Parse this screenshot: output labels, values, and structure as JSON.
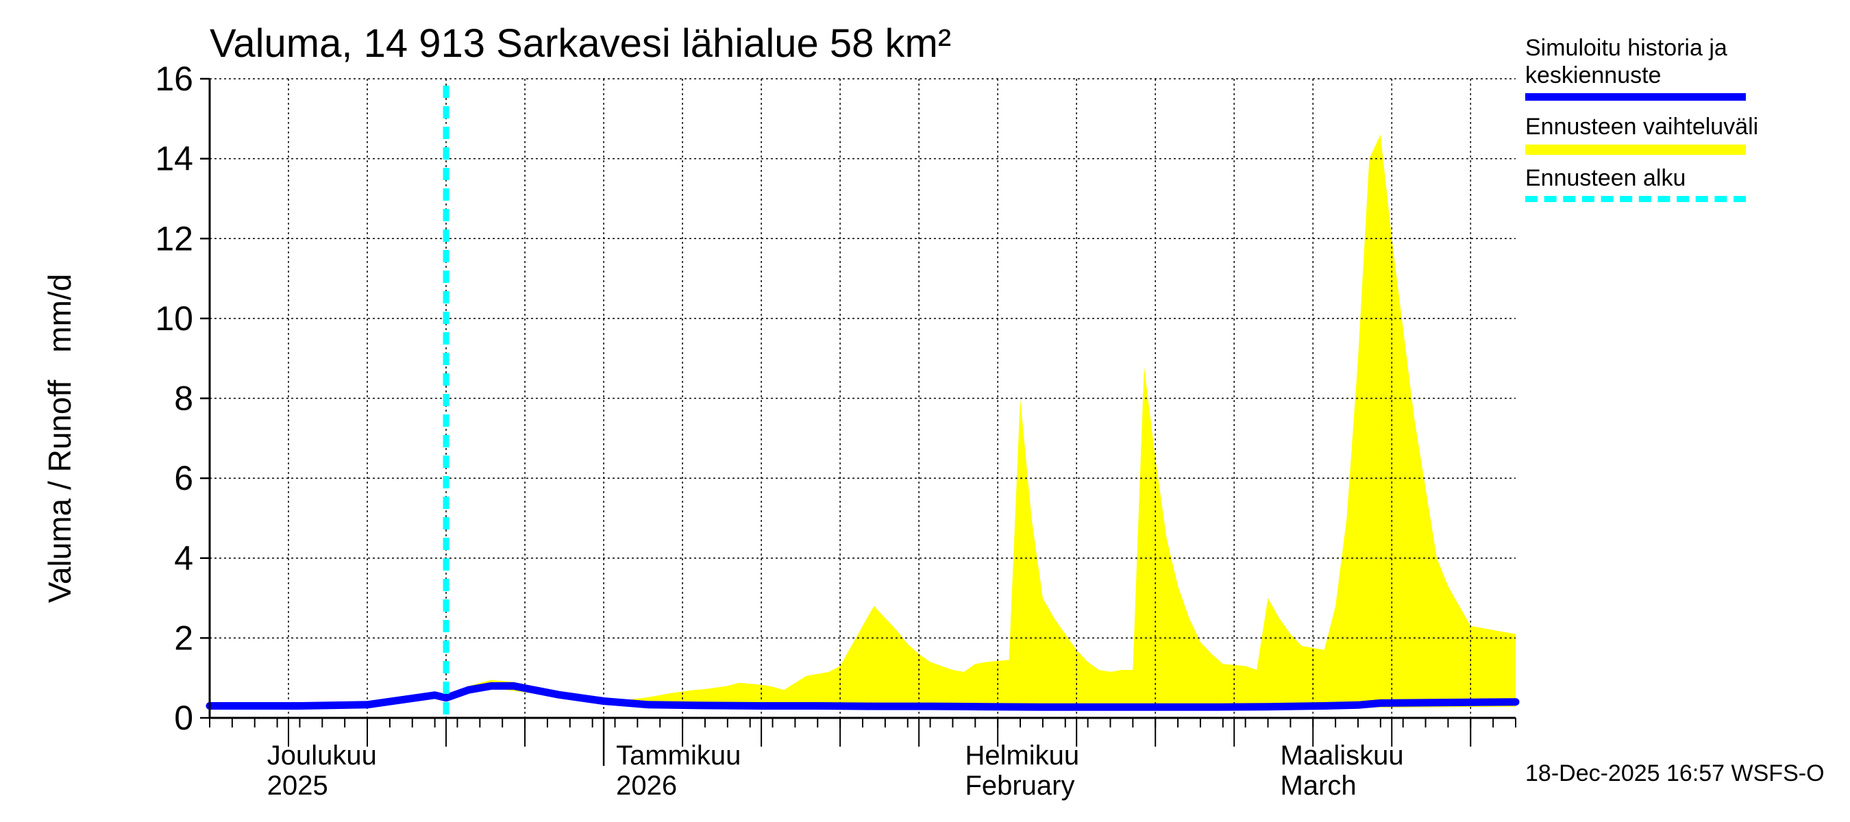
{
  "title": "Valuma, 14 913 Sarkavesi lähialue 58 km²",
  "y_axis_label": "Valuma / Runoff",
  "y_axis_unit": "mm/d",
  "legend": [
    {
      "label": "Simuloitu historia ja keskiennuste",
      "color": "#0000ff",
      "style": "solid"
    },
    {
      "label": "Ennusteen vaihteluväli",
      "color": "#ffff00",
      "style": "band"
    },
    {
      "label": "Ennusteen alku",
      "color": "#00ffff",
      "style": "dashed"
    }
  ],
  "footer": "18-Dec-2025 16:57 WSFS-O",
  "chart_data": {
    "type": "line",
    "title": "Valuma, 14 913 Sarkavesi lähialue 58 km²",
    "ylabel": "Valuma / Runoff mm/d",
    "ylim": [
      0,
      16
    ],
    "yticks": [
      0,
      2,
      4,
      6,
      8,
      10,
      12,
      14,
      16
    ],
    "x_range_days": [
      -4,
      112
    ],
    "x_unit": "days since 1-Dec-2025",
    "grid": true,
    "month_labels": [
      {
        "day": 0,
        "lines": [
          "Joulukuu",
          "2025"
        ]
      },
      {
        "day": 31,
        "lines": [
          "Tammikuu",
          "2026"
        ]
      },
      {
        "day": 62,
        "lines": [
          "Helmikuu",
          "February"
        ]
      },
      {
        "day": 90,
        "lines": [
          "Maaliskuu",
          "March"
        ]
      }
    ],
    "forecast_start_day": 17,
    "series": [
      {
        "name": "Simuloitu historia ja keskiennuste",
        "x": [
          -4,
          0,
          4,
          10,
          13,
          16,
          17,
          19,
          21,
          23,
          27,
          31,
          35,
          40,
          45,
          50,
          55,
          60,
          65,
          70,
          75,
          80,
          85,
          90,
          95,
          98,
          100,
          112
        ],
        "values": [
          0.3,
          0.3,
          0.3,
          0.33,
          0.45,
          0.57,
          0.5,
          0.7,
          0.8,
          0.8,
          0.58,
          0.42,
          0.33,
          0.31,
          0.3,
          0.3,
          0.29,
          0.29,
          0.28,
          0.27,
          0.27,
          0.27,
          0.27,
          0.28,
          0.3,
          0.32,
          0.37,
          0.4
        ]
      },
      {
        "name": "Ennusteen vaihteluväli (upper)",
        "x": [
          17,
          19,
          21,
          23,
          25,
          27,
          31,
          33,
          35,
          37,
          39,
          40,
          42,
          43,
          45,
          46,
          47,
          49,
          50,
          51,
          52,
          55,
          57,
          58,
          59,
          60,
          62,
          63,
          64,
          65,
          67,
          68,
          69,
          70,
          71,
          73,
          74,
          75,
          76,
          77,
          78,
          79,
          80,
          81,
          82,
          83,
          84,
          85,
          86,
          88,
          89,
          90,
          91,
          92,
          93,
          95,
          96,
          97,
          98,
          99,
          100,
          101,
          103,
          105,
          106,
          107,
          108,
          109,
          110,
          111,
          112
        ],
        "values": [
          0.55,
          0.8,
          0.95,
          0.9,
          0.78,
          0.66,
          0.5,
          0.45,
          0.52,
          0.62,
          0.7,
          0.72,
          0.8,
          0.88,
          0.83,
          0.78,
          0.7,
          1.05,
          1.1,
          1.15,
          1.3,
          2.8,
          2.2,
          1.85,
          1.6,
          1.4,
          1.2,
          1.15,
          1.35,
          1.4,
          1.45,
          8.0,
          5.0,
          3.0,
          2.5,
          1.7,
          1.4,
          1.2,
          1.15,
          1.2,
          1.2,
          8.8,
          6.5,
          4.5,
          3.3,
          2.5,
          1.9,
          1.6,
          1.35,
          1.3,
          1.2,
          3.0,
          2.5,
          2.1,
          1.8,
          1.7,
          2.8,
          5.0,
          9.0,
          14.0,
          14.6,
          12.0,
          7.5,
          4.0,
          3.3,
          2.8,
          2.3,
          2.25,
          2.2,
          2.15,
          2.1
        ]
      },
      {
        "name": "Ennusteen vaihteluväli (lower)",
        "x": [
          17,
          21,
          31,
          40,
          60,
          80,
          90,
          100,
          112
        ],
        "values": [
          0.5,
          0.75,
          0.38,
          0.28,
          0.26,
          0.24,
          0.24,
          0.26,
          0.28
        ]
      }
    ]
  }
}
